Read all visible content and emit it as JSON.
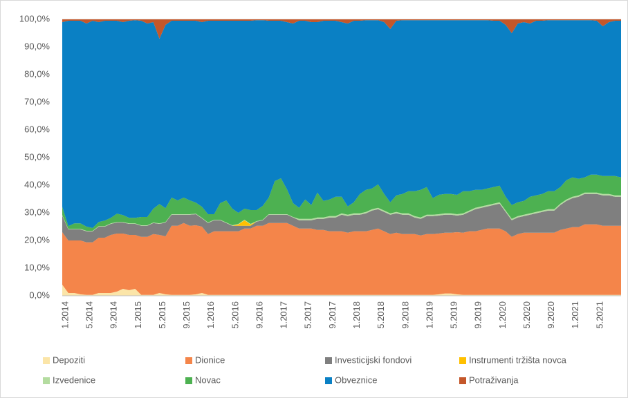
{
  "chart_data": {
    "type": "stacked_area",
    "categories": [
      "1.2014",
      null,
      null,
      null,
      "5.2014",
      null,
      null,
      null,
      "9.2014",
      null,
      null,
      null,
      "1.2015",
      null,
      null,
      null,
      "5.2015",
      null,
      null,
      null,
      "9.2015",
      null,
      null,
      null,
      "1.2016",
      null,
      null,
      null,
      "5.2016",
      null,
      null,
      null,
      "9.2016",
      null,
      null,
      null,
      "1.2017",
      null,
      null,
      null,
      "5.2017",
      null,
      null,
      null,
      "9.2017",
      null,
      null,
      null,
      "1.2018",
      null,
      null,
      null,
      "5.2018",
      null,
      null,
      null,
      "9.2018",
      null,
      null,
      null,
      "1.2019",
      null,
      null,
      null,
      "5.2019",
      null,
      null,
      null,
      "9.2019",
      null,
      null,
      null,
      "1.2020",
      null,
      null,
      null,
      "5.2020",
      null,
      null,
      null,
      "9.2020",
      null,
      null,
      null,
      "1.2021",
      null,
      null,
      null,
      "5.2021",
      null,
      null,
      null,
      null
    ],
    "ylim": [
      0,
      100
    ],
    "yticks": [
      {
        "value": 0,
        "label": "0,0%"
      },
      {
        "value": 10,
        "label": "10,0%"
      },
      {
        "value": 20,
        "label": "20,0%"
      },
      {
        "value": 30,
        "label": "30,0%"
      },
      {
        "value": 40,
        "label": "40,0%"
      },
      {
        "value": 50,
        "label": "50,0%"
      },
      {
        "value": 60,
        "label": "60,0%"
      },
      {
        "value": 70,
        "label": "70,0%"
      },
      {
        "value": 80,
        "label": "80,0%"
      },
      {
        "value": 90,
        "label": "90,0%"
      },
      {
        "value": 100,
        "label": "100,0%"
      }
    ],
    "grid": true,
    "legend": "bottom",
    "series": [
      {
        "name": "Depoziti",
        "color": "#fbe5a8",
        "values": [
          4,
          1,
          1,
          0.5,
          0.3,
          0.3,
          1,
          1,
          1,
          1.5,
          2.5,
          2,
          2.5,
          0.3,
          0.3,
          0.3,
          1,
          0.5,
          0.3,
          0.3,
          0.3,
          0.3,
          0.5,
          1,
          0.3,
          0.3,
          0.3,
          0.3,
          0.3,
          0.3,
          0.3,
          0.3,
          0.3,
          0.3,
          0.3,
          0.3,
          0.3,
          0.3,
          0.3,
          0.3,
          0.3,
          0.3,
          0.3,
          0.3,
          0.3,
          0.3,
          0.3,
          0.3,
          0.3,
          0.3,
          0.3,
          0.3,
          0.3,
          0.3,
          0.3,
          0.3,
          0.3,
          0.3,
          0.3,
          0.3,
          0.3,
          0.3,
          0.5,
          0.8,
          0.8,
          0.5,
          0.3,
          0.3,
          0.3,
          0.3,
          0.3,
          0.3,
          0.3,
          0.3,
          0.3,
          0.3,
          0.3,
          0.3,
          0.3,
          0.3,
          0.3,
          0.3,
          0.3,
          0.3,
          0.3,
          0.3,
          0.3,
          0.3,
          0.3,
          0.3,
          0.3,
          0.3,
          0.3
        ]
      },
      {
        "name": "Dionice",
        "color": "#f4854a",
        "values": [
          19,
          19,
          19,
          19.5,
          19,
          19,
          20,
          20,
          21,
          21,
          20,
          20,
          19.5,
          21,
          21,
          22,
          21,
          21,
          25,
          25,
          26,
          25,
          25,
          24,
          22,
          23,
          23,
          23,
          23,
          23,
          24,
          24,
          25,
          25,
          26,
          26,
          26,
          26,
          25,
          24,
          24,
          24,
          23.5,
          23.5,
          23,
          23,
          23,
          22.5,
          23,
          23,
          23,
          23.5,
          24,
          23,
          22,
          22.5,
          22,
          22,
          22,
          21.5,
          22,
          22,
          22,
          22,
          22,
          22.5,
          22.5,
          23,
          23,
          23.5,
          24,
          24,
          24,
          23,
          21,
          22,
          22.5,
          22.5,
          22.5,
          22.5,
          22.5,
          22.5,
          23.5,
          24,
          24.5,
          24.5,
          25.5,
          25.5,
          25.5,
          25,
          25,
          25,
          25
        ]
      },
      {
        "name": "Investicijski fondovi",
        "color": "#7f7f7f",
        "values": [
          6,
          4,
          4,
          4,
          4,
          4,
          4,
          4,
          4,
          4,
          4,
          4,
          4,
          4,
          4,
          4,
          4,
          5,
          4,
          4,
          3,
          4,
          4,
          3,
          4,
          4,
          4,
          3,
          2,
          2,
          1,
          1,
          1.5,
          2,
          3,
          3,
          3,
          3,
          3,
          3,
          3,
          3,
          4,
          4,
          5,
          5,
          6,
          6,
          6,
          6,
          6.5,
          7,
          7,
          7,
          7,
          7,
          7,
          7,
          6,
          6,
          6.5,
          6.5,
          6.5,
          6.5,
          6.5,
          6,
          6.5,
          7,
          8,
          8,
          8,
          8.5,
          9,
          7,
          6,
          6,
          6,
          6.5,
          7,
          7.5,
          8,
          8,
          9,
          10,
          10.5,
          11,
          11,
          11,
          11,
          11,
          11,
          10.5,
          10.5
        ]
      },
      {
        "name": "Instrumenti tržišta novca",
        "color": "#ffc000",
        "values": [
          0,
          0,
          0,
          0,
          0,
          0,
          0,
          0,
          0,
          0,
          0,
          0,
          0,
          0,
          0,
          0,
          0,
          0,
          0,
          0,
          0,
          0,
          0,
          0,
          0,
          0,
          0,
          0,
          0,
          0.5,
          2,
          0.5,
          0,
          0,
          0,
          0,
          0,
          0,
          0,
          0,
          0,
          0,
          0,
          0,
          0,
          0,
          0,
          0,
          0,
          0,
          0,
          0,
          0,
          0,
          0,
          0,
          0,
          0,
          0,
          0,
          0,
          0,
          0,
          0,
          0,
          0,
          0,
          0,
          0,
          0,
          0,
          0,
          0,
          0,
          0,
          0,
          0,
          0,
          0,
          0,
          0,
          0,
          0,
          0,
          0,
          0,
          0,
          0,
          0,
          0,
          0,
          0,
          0
        ]
      },
      {
        "name": "Izvedenice",
        "color": "#b4dca0",
        "values": [
          0.2,
          0.2,
          0.2,
          0.2,
          0.2,
          0.2,
          0.2,
          0.2,
          0.2,
          0.2,
          0.2,
          0.2,
          0.2,
          0.2,
          0.2,
          0.2,
          0.2,
          0.2,
          0.2,
          0.2,
          0.2,
          0.2,
          0.2,
          0.2,
          0.2,
          0.2,
          0.2,
          0.2,
          0.2,
          0.2,
          0.2,
          0.2,
          0.2,
          0.2,
          0.2,
          0.2,
          0.2,
          0.2,
          0.2,
          0.5,
          0.5,
          0.5,
          0.5,
          0.5,
          0.5,
          0.5,
          0.5,
          0.5,
          0.5,
          0.5,
          0.5,
          0.5,
          0.5,
          0.5,
          0.5,
          0.5,
          0.5,
          0.5,
          0.5,
          0.5,
          0.5,
          0.5,
          0.5,
          0.5,
          0.5,
          0.5,
          0.5,
          0.5,
          0.5,
          0.5,
          0.5,
          0.5,
          0.5,
          0.5,
          0.5,
          0.5,
          0.5,
          0.5,
          0.5,
          0.5,
          0.5,
          0.5,
          0.5,
          0.5,
          0.5,
          0.5,
          0.5,
          0.5,
          0.5,
          0.5,
          0.5,
          0.5,
          0.5
        ]
      },
      {
        "name": "Novac",
        "color": "#4db151",
        "values": [
          3,
          1,
          2,
          2,
          1.5,
          1,
          1.5,
          2,
          2,
          3,
          2.5,
          2,
          2,
          3,
          3,
          5,
          7,
          5,
          6,
          5,
          6,
          5,
          4,
          4,
          3,
          2,
          6,
          8,
          6,
          4,
          4,
          5,
          4,
          5,
          6,
          12,
          13,
          9,
          5,
          4,
          7,
          5,
          9,
          6,
          6,
          7,
          6,
          3,
          4,
          7,
          8,
          7.5,
          8.5,
          6,
          4,
          6,
          7,
          8,
          9,
          10,
          10,
          6,
          7,
          7,
          7,
          7,
          8,
          7,
          6.5,
          6,
          6,
          6,
          6,
          5,
          5,
          5,
          5,
          6,
          6,
          6,
          6.5,
          6.5,
          6,
          7,
          7,
          6,
          5.5,
          6.5,
          6.5,
          6.5,
          6.5,
          7,
          6.5
        ]
      },
      {
        "name": "Obveznice",
        "color": "#0a80c4",
        "values": [
          66.8,
          74.3,
          73.3,
          73.3,
          73.5,
          75,
          72.3,
          72.3,
          71.3,
          69.8,
          69.8,
          71.3,
          71.5,
          71,
          70,
          67.5,
          59.8,
          66.3,
          64,
          65,
          64,
          65,
          65.8,
          66.8,
          70,
          70,
          66,
          65,
          68,
          69.5,
          68,
          68.5,
          68.7,
          67.2,
          64,
          58,
          57,
          60.5,
          65,
          67.7,
          64.7,
          66.2,
          61.7,
          65.2,
          64.7,
          63.7,
          63.2,
          66.2,
          65.7,
          62.7,
          61.4,
          60.9,
          59.4,
          62.2,
          62.7,
          63.2,
          62.9,
          61.9,
          61.9,
          61.4,
          60.4,
          64.4,
          63.2,
          62.9,
          62.9,
          63.2,
          61.9,
          61.9,
          61.4,
          61.4,
          60.9,
          60.2,
          59.7,
          62.2,
          62.2,
          64.7,
          64.7,
          62.7,
          63.2,
          62.7,
          61.9,
          61.9,
          60.4,
          57.9,
          56.9,
          57.4,
          56.9,
          55.9,
          55.7,
          54.2,
          55.7,
          56.2,
          56.7
        ]
      },
      {
        "name": "Potraživanja",
        "color": "#c4572a",
        "values": [
          1,
          0.5,
          0.5,
          0.5,
          1.5,
          0.5,
          1,
          0.5,
          0.5,
          0.5,
          1,
          0.5,
          0.3,
          0.5,
          1.5,
          1,
          7,
          2,
          0.5,
          0.5,
          0.5,
          0.5,
          0.5,
          1,
          0.5,
          0.5,
          0.5,
          0.5,
          0.5,
          0.5,
          0.5,
          0.5,
          0.3,
          0.3,
          0.5,
          0.5,
          0.5,
          1,
          1.5,
          0.5,
          0.5,
          1,
          1,
          0.5,
          0.5,
          0.5,
          1,
          1.5,
          0.5,
          0.5,
          0.3,
          0.3,
          0.3,
          1,
          3.5,
          0.5,
          0.3,
          0.3,
          0.3,
          0.3,
          0.3,
          0.3,
          0.3,
          0.3,
          0.3,
          0.3,
          0.3,
          0.3,
          0.3,
          0.3,
          0.3,
          0.5,
          0.5,
          2,
          5,
          1.5,
          1,
          1.5,
          0.5,
          0.5,
          0.3,
          0.3,
          0.3,
          0.3,
          0.3,
          0.3,
          0.3,
          0.3,
          0.5,
          2.5,
          1,
          0.5,
          0.5
        ]
      }
    ]
  }
}
